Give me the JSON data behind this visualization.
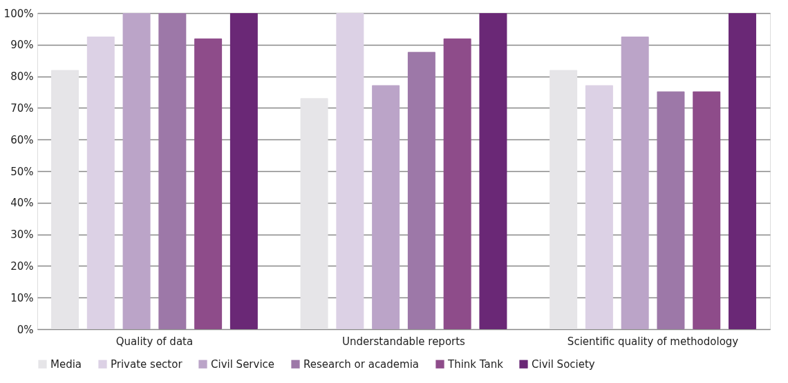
{
  "chart_data": {
    "type": "bar",
    "categories": [
      "Quality of data",
      "Understandable reports",
      "Scientific quality of methodology"
    ],
    "series": [
      {
        "name": "Media",
        "color": "#e6e5e8",
        "values": [
          82,
          73.1,
          82
        ]
      },
      {
        "name": "Private sector",
        "color": "#dcd1e5",
        "values": [
          92.6,
          100,
          77.2
        ]
      },
      {
        "name": "Civil Service",
        "color": "#bba4c8",
        "values": [
          100,
          77.2,
          92.6
        ]
      },
      {
        "name": "Research or academia",
        "color": "#9d78a8",
        "values": [
          100,
          87.7,
          75.2
        ]
      },
      {
        "name": "Think Tank",
        "color": "#8e4c8a",
        "values": [
          92,
          92,
          75.2
        ]
      },
      {
        "name": "Civil Society",
        "color": "#6a2876",
        "values": [
          100,
          100,
          100
        ]
      }
    ],
    "ylim": [
      0,
      100
    ],
    "yticks": [
      {
        "value": 0,
        "label": "0%"
      },
      {
        "value": 10,
        "label": "10%"
      },
      {
        "value": 20,
        "label": "20%"
      },
      {
        "value": 30,
        "label": "30%"
      },
      {
        "value": 40,
        "label": "40%"
      },
      {
        "value": 50,
        "label": "50%"
      },
      {
        "value": 60,
        "label": "60%"
      },
      {
        "value": 70,
        "label": "70%"
      },
      {
        "value": 80,
        "label": "80%"
      },
      {
        "value": 90,
        "label": "90%"
      },
      {
        "value": 100,
        "label": "100%"
      }
    ],
    "grid": "y",
    "legend": "bottom"
  }
}
